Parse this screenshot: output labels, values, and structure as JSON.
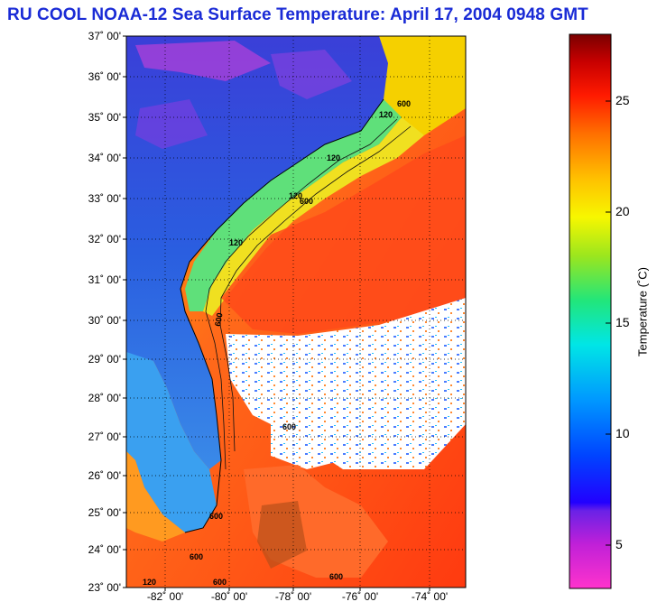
{
  "title": "RU COOL  NOAA-12  Sea Surface Temperature:  April 17, 2004 0948 GMT",
  "map": {
    "latitude_labels": [
      "37˚ 00'",
      "36˚ 00'",
      "35˚ 00'",
      "34˚ 00'",
      "33˚ 00'",
      "32˚ 00'",
      "31˚ 00'",
      "30˚ 00'",
      "29˚ 00'",
      "28˚ 00'",
      "27˚ 00'",
      "26˚ 00'",
      "25˚ 00'",
      "24˚ 00'",
      "23˚ 00'"
    ],
    "longitude_labels": [
      "-82˚ 00'",
      "-80˚ 00'",
      "-78˚ 00'",
      "-76˚ 00'",
      "-74˚ 00'"
    ],
    "isobath_labels": [
      "600",
      "120",
      "120",
      "600",
      "120",
      "120",
      "600",
      "600",
      "600",
      "600",
      "120",
      "600",
      "600"
    ],
    "extent": {
      "lon_min": -83.0,
      "lon_max": -73.2,
      "lat_min": 23.0,
      "lat_max": 37.0
    }
  },
  "colorbar": {
    "axis_title": "Temperature (˚C)",
    "tick_labels": [
      "25",
      "20",
      "15",
      "10",
      "5"
    ],
    "tick_values": [
      25,
      20,
      15,
      10,
      5
    ],
    "range": [
      3,
      28
    ]
  },
  "colors": {
    "title": "#1a2bd6",
    "land_cold": "#2a4fd8",
    "shelf_green": "#5fe07a",
    "gulf_stream": "#ff5a1e",
    "cloud": "#ffffff"
  }
}
